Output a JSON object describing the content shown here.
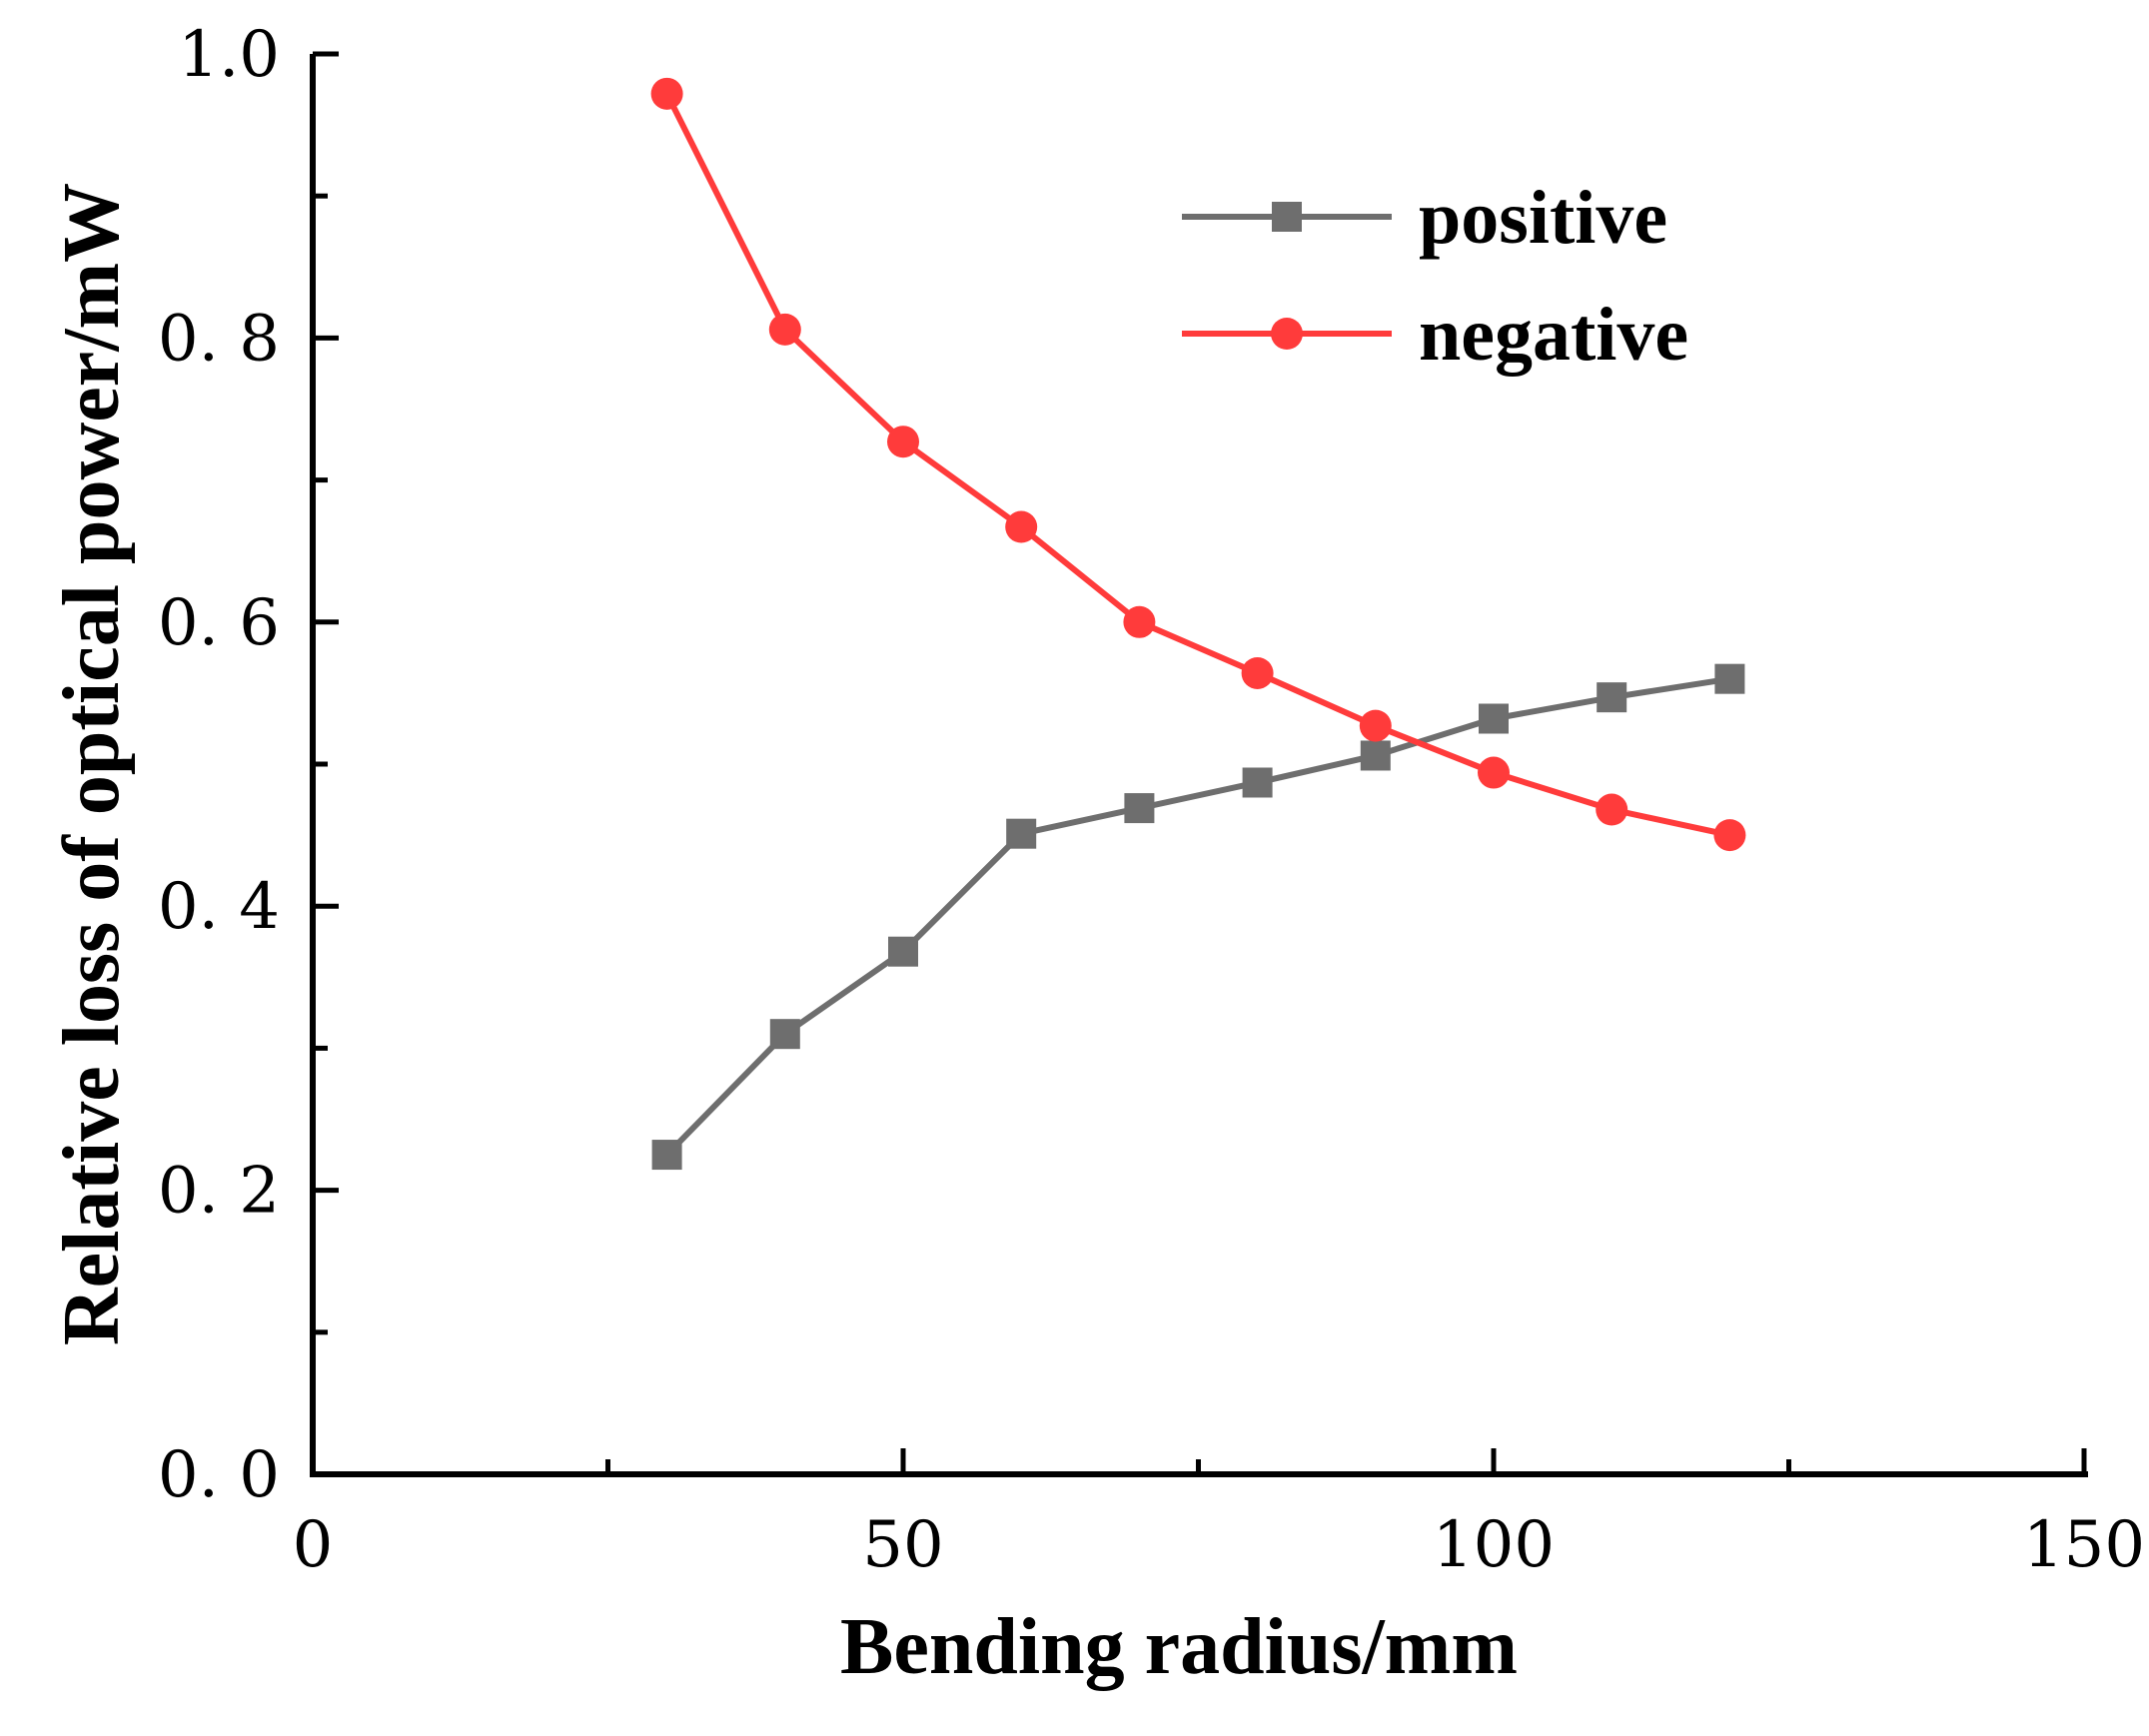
{
  "chart_data": {
    "type": "line",
    "title": "",
    "xlabel": "Bending radius/mm",
    "ylabel": "Relative loss of optical power/mW",
    "xlim": [
      0,
      150
    ],
    "ylim": [
      0.0,
      1.0
    ],
    "x_ticks": [
      0,
      50,
      100,
      150
    ],
    "x_tick_labels": [
      "0",
      "50",
      "100",
      "150"
    ],
    "x_minor_ticks": [
      25,
      75,
      125
    ],
    "y_ticks": [
      0.0,
      0.2,
      0.4,
      0.6,
      0.8,
      1.0
    ],
    "y_tick_labels": [
      "0. 0",
      "0. 2",
      "0. 4",
      "0. 6",
      "0. 8",
      "1.0"
    ],
    "y_minor_ticks": [
      0.1,
      0.3,
      0.5,
      0.7,
      0.9
    ],
    "legend_position": "top-right",
    "x": [
      30,
      40,
      50,
      60,
      70,
      80,
      90,
      100,
      110,
      120
    ],
    "series": [
      {
        "name": "positive",
        "marker": "square",
        "color": "#6e6e6e",
        "values": [
          0.225,
          0.31,
          0.368,
          0.451,
          0.469,
          0.487,
          0.506,
          0.532,
          0.547,
          0.56
        ]
      },
      {
        "name": "negative",
        "marker": "circle",
        "color": "#ff3b3b",
        "values": [
          0.972,
          0.806,
          0.727,
          0.667,
          0.6,
          0.564,
          0.527,
          0.494,
          0.468,
          0.45
        ]
      }
    ]
  }
}
